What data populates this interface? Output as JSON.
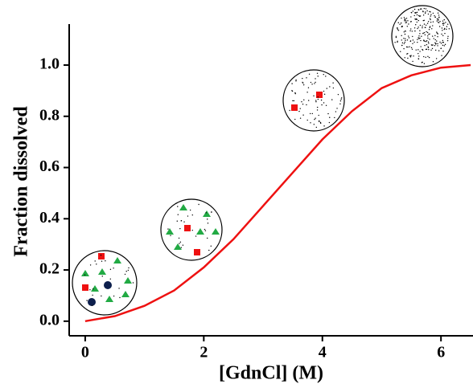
{
  "chart_data": {
    "type": "line",
    "x_label": "[GdnCl] (M)",
    "y_label": "Fraction dissolved",
    "x": [
      0,
      0.5,
      1,
      1.5,
      2,
      2.5,
      3,
      3.5,
      4,
      4.5,
      5,
      5.5,
      6,
      6.5
    ],
    "series": [
      {
        "color": "#ee1111",
        "values": [
          0.0,
          0.02,
          0.06,
          0.12,
          0.21,
          0.32,
          0.45,
          0.58,
          0.71,
          0.82,
          0.91,
          0.96,
          0.99,
          1.0
        ]
      }
    ],
    "xlim": [
      -0.27,
      6.54
    ],
    "ylim": [
      -0.057,
      1.16
    ],
    "xticks": [
      0,
      2,
      4,
      6
    ],
    "yticks": [
      {
        "value": 0,
        "label": "0.0"
      },
      {
        "value": 0.2,
        "label": "0.2"
      },
      {
        "value": 0.4,
        "label": "0.4"
      },
      {
        "value": 0.6,
        "label": "0.6"
      },
      {
        "value": 0.8,
        "label": "0.8"
      },
      {
        "value": 1.0,
        "label": "1.0"
      }
    ]
  }
}
